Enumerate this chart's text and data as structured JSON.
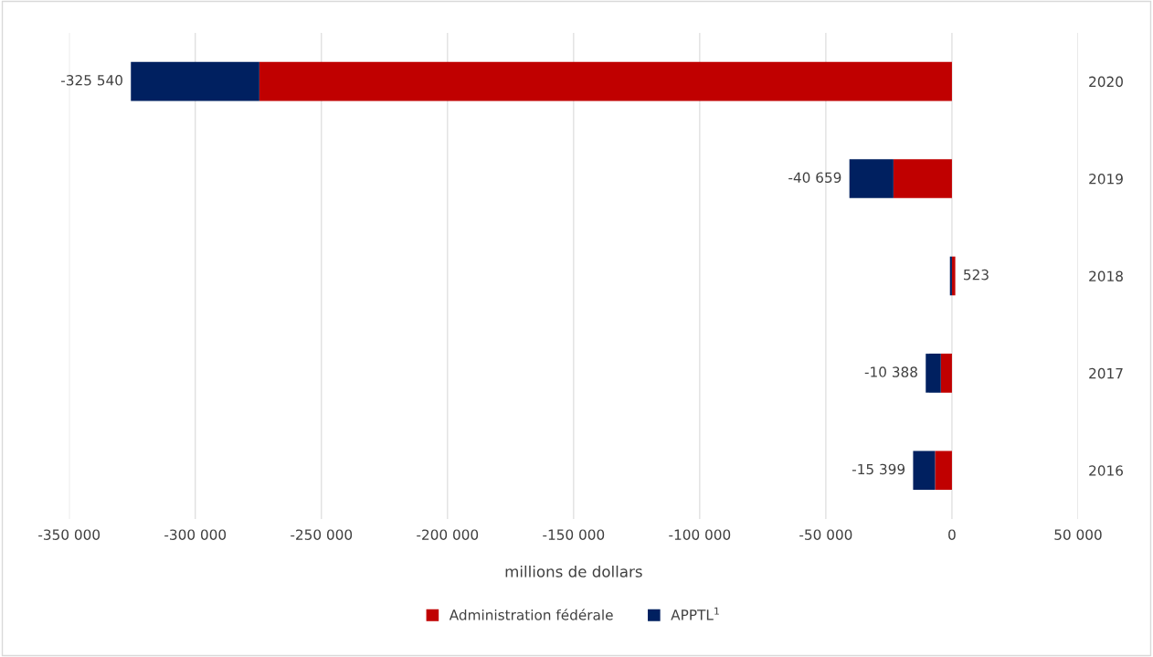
{
  "chart_data": {
    "type": "bar",
    "orientation": "horizontal",
    "stacked": true,
    "xlabel": "millions de dollars",
    "categories": [
      "2020",
      "2019",
      "2018",
      "2017",
      "2016"
    ],
    "series": [
      {
        "name": "Administration fédérale",
        "color": "#c00000",
        "values": [
          -274600,
          -23200,
          1323,
          -4400,
          -6700
        ]
      },
      {
        "name": "APPTL$^{1}$",
        "color": "#002060",
        "values": [
          -50940,
          -17459,
          -800,
          -5988,
          -8699
        ]
      }
    ],
    "totals": [
      "-325 540",
      "-40 659",
      "523",
      "-10 388",
      "-15 399"
    ],
    "xlim": [
      -350000,
      50000
    ],
    "xticks": [
      {
        "value": -350000,
        "label": "-350 000"
      },
      {
        "value": -300000,
        "label": "-300 000"
      },
      {
        "value": -250000,
        "label": "-250 000"
      },
      {
        "value": -200000,
        "label": "-200 000"
      },
      {
        "value": -150000,
        "label": "-150 000"
      },
      {
        "value": -100000,
        "label": "-100 000"
      },
      {
        "value": -50000,
        "label": "-50 000"
      },
      {
        "value": 0,
        "label": "0"
      },
      {
        "value": 50000,
        "label": "50 000"
      }
    ],
    "grid": "x",
    "legend": "bottom"
  }
}
